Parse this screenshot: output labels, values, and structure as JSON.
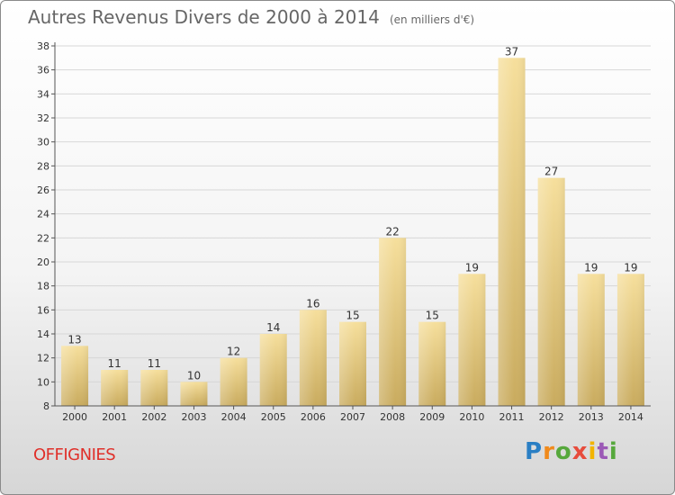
{
  "title": "Autres Revenus Divers de 2000 à 2014",
  "subtitle": "(en milliers d'€)",
  "location": "OFFIGNIES",
  "brand": [
    "P",
    "r",
    "o",
    "x",
    "i",
    "t",
    "i"
  ],
  "colors": {
    "bar_top": "#f6df9c",
    "bar_bottom": "#c9ab5e",
    "grid": "#d7d7d7",
    "axis": "#555555",
    "label": "#333333",
    "title": "#666666",
    "location": "#e0302a"
  },
  "chart_data": {
    "type": "bar",
    "categories": [
      "2000",
      "2001",
      "2002",
      "2003",
      "2004",
      "2005",
      "2006",
      "2007",
      "2008",
      "2009",
      "2010",
      "2011",
      "2012",
      "2013",
      "2014"
    ],
    "values": [
      13,
      11,
      11,
      10,
      12,
      14,
      16,
      15,
      22,
      15,
      19,
      37,
      27,
      19,
      19
    ],
    "ylim": [
      8,
      38
    ],
    "yticks": [
      8,
      10,
      12,
      14,
      16,
      18,
      20,
      22,
      24,
      26,
      28,
      30,
      32,
      34,
      36,
      38
    ],
    "grid": true,
    "data_labels": true
  }
}
